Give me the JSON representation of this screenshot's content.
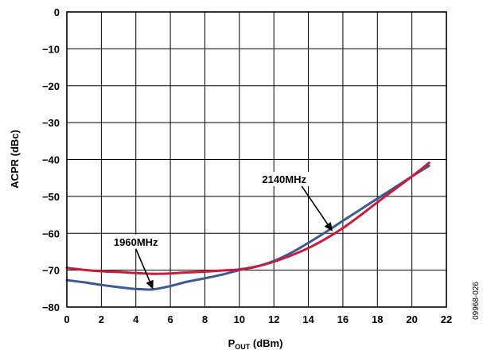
{
  "chart_data": {
    "type": "line",
    "xlabel_main": "P",
    "xlabel_sub": "OUT",
    "xlabel_unit": " (dBm)",
    "ylabel": "ACPR (dBc)",
    "xlim": [
      0,
      22
    ],
    "ylim": [
      -80,
      0
    ],
    "x_ticks": [
      0,
      2,
      4,
      6,
      8,
      10,
      12,
      14,
      16,
      18,
      20,
      22
    ],
    "y_ticks": [
      0,
      -10,
      -20,
      -30,
      -40,
      -50,
      -60,
      -70,
      -80
    ],
    "x_tick_labels": [
      "0",
      "2",
      "4",
      "6",
      "8",
      "10",
      "12",
      "14",
      "16",
      "18",
      "20",
      "22"
    ],
    "y_tick_labels": [
      "0",
      "−10",
      "−20",
      "−30",
      "−40",
      "−50",
      "−60",
      "−70",
      "−80"
    ],
    "grid": true,
    "series": [
      {
        "name": "1960MHz",
        "color": "#3b5a94",
        "x": [
          0,
          1,
          2,
          3,
          4,
          5,
          6,
          7,
          8,
          9,
          10,
          11,
          12,
          13,
          14,
          15,
          16,
          17,
          18,
          19,
          20,
          21
        ],
        "y": [
          -72.7,
          -73.3,
          -74.0,
          -74.6,
          -75.1,
          -75.2,
          -74.3,
          -73.1,
          -72.2,
          -71.2,
          -70.0,
          -69.0,
          -67.5,
          -65.3,
          -62.6,
          -59.7,
          -56.6,
          -53.6,
          -50.6,
          -47.6,
          -44.6,
          -41.7
        ]
      },
      {
        "name": "2140MHz",
        "color": "#cc1a3a",
        "x": [
          0,
          1,
          2,
          3,
          4,
          5,
          6,
          7,
          8,
          9,
          10,
          11,
          12,
          13,
          14,
          15,
          16,
          17,
          18,
          19,
          20,
          21
        ],
        "y": [
          -69.4,
          -69.9,
          -70.3,
          -70.5,
          -70.8,
          -71.0,
          -70.9,
          -70.6,
          -70.4,
          -70.1,
          -69.8,
          -69.0,
          -67.7,
          -66.0,
          -64.0,
          -61.5,
          -58.6,
          -55.2,
          -51.6,
          -48.1,
          -44.6,
          -40.9
        ]
      }
    ],
    "annotations": [
      {
        "text": "1960MHz",
        "target_series": "1960MHz",
        "arrow_to": [
          5,
          -75.2
        ],
        "text_at": [
          4,
          -62.5
        ]
      },
      {
        "text": "2140MHz",
        "target_series": "2140MHz",
        "arrow_to": [
          15.4,
          -59.5
        ],
        "text_at": [
          12.6,
          -45.5
        ]
      }
    ],
    "figure_id": "09968-026"
  }
}
